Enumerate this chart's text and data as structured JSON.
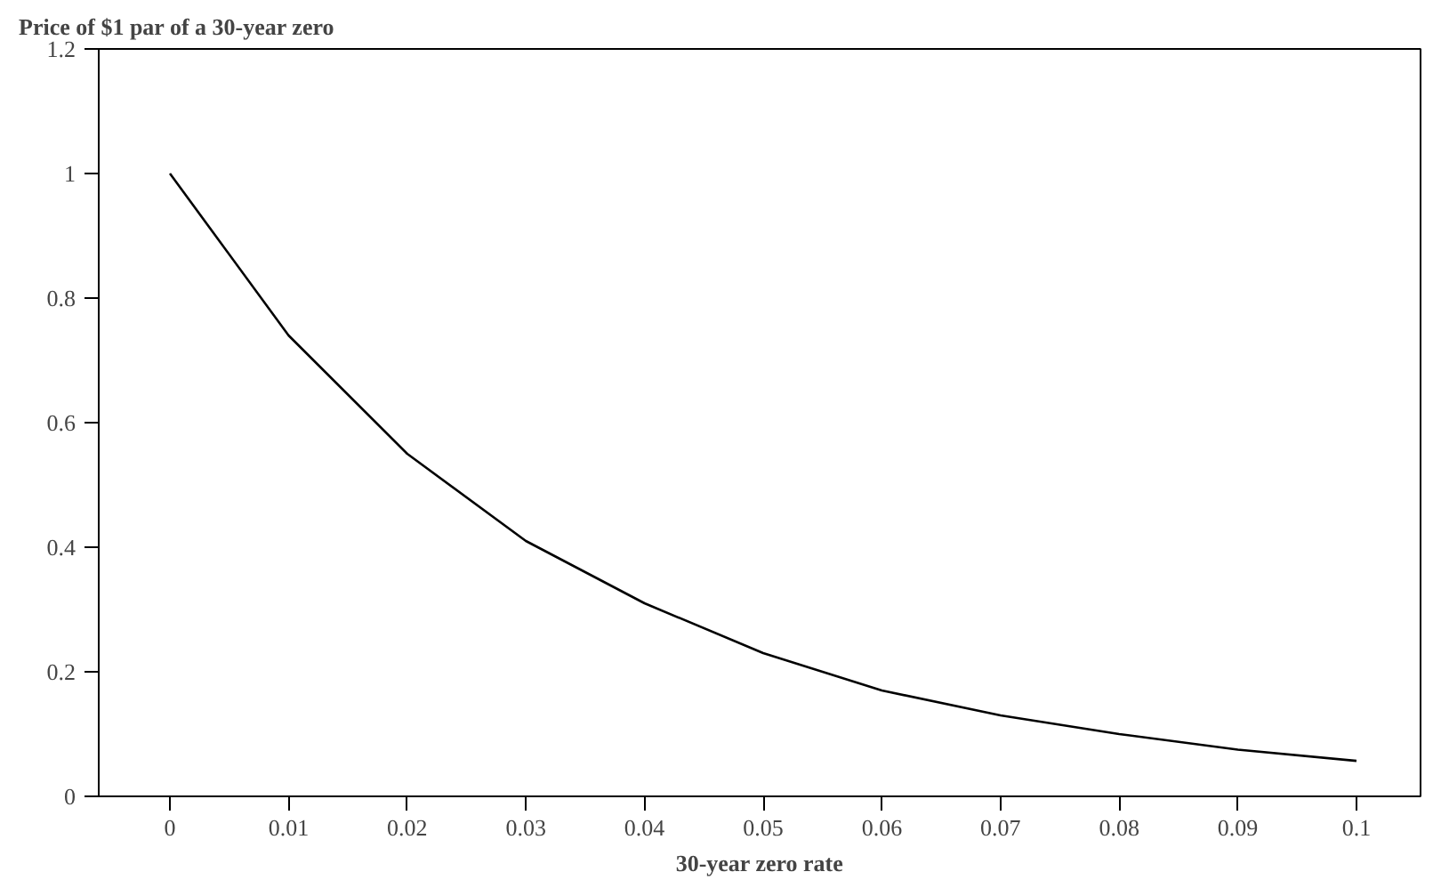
{
  "chart_data": {
    "type": "line",
    "title": "Price of $1 par of a 30-year zero",
    "xlabel": "30-year zero rate",
    "x": [
      0,
      0.01,
      0.02,
      0.03,
      0.04,
      0.05,
      0.06,
      0.07,
      0.08,
      0.09,
      0.1
    ],
    "series": [
      {
        "color": "#000000",
        "values": [
          1.0,
          0.74,
          0.55,
          0.41,
          0.31,
          0.23,
          0.17,
          0.13,
          0.1,
          0.075,
          0.057
        ]
      }
    ],
    "xlim": [
      -0.006,
      0.1054
    ],
    "xticks": [
      0,
      0.01,
      0.02,
      0.03,
      0.04,
      0.05,
      0.06,
      0.07,
      0.08,
      0.09,
      0.1
    ],
    "ylim": [
      0,
      1.2
    ],
    "yticks": [
      0,
      0.2,
      0.4,
      0.6,
      0.8,
      1,
      1.2
    ],
    "grid": false,
    "marker": "none",
    "line_style": "solid"
  }
}
